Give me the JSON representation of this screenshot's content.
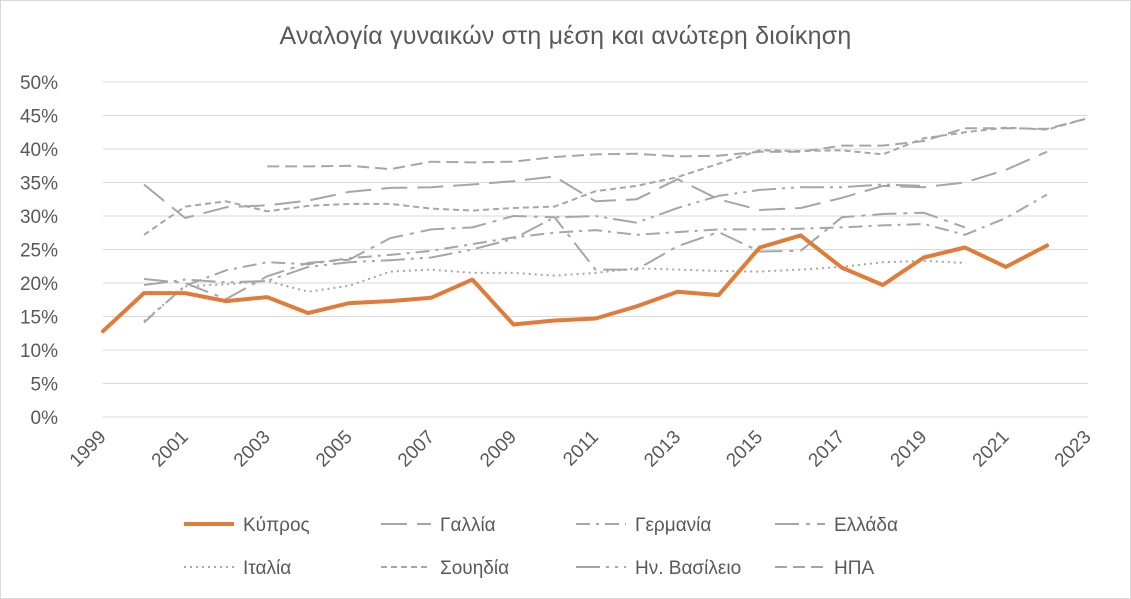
{
  "chart_data": {
    "type": "line",
    "title": "Αναλογία γυναικών στη μέση και ανώτερη διοίκηση",
    "xlabel": "",
    "ylabel": "",
    "ylim": [
      0,
      0.5
    ],
    "xlim": [
      1999,
      2023
    ],
    "y_ticks": [
      "0%",
      "5%",
      "10%",
      "15%",
      "20%",
      "25%",
      "30%",
      "35%",
      "40%",
      "45%",
      "50%"
    ],
    "x_ticks": [
      "1999",
      "2001",
      "2003",
      "2005",
      "2007",
      "2009",
      "2011",
      "2013",
      "2015",
      "2017",
      "2019",
      "2021",
      "2023"
    ],
    "grid": "horizontal",
    "legend_position": "bottom",
    "series": [
      {
        "name": "Κύπρος",
        "color": "#E07B39",
        "style": "solid-thick",
        "x": [
          1999,
          2000,
          2001,
          2002,
          2003,
          2004,
          2005,
          2006,
          2007,
          2008,
          2009,
          2010,
          2011,
          2012,
          2013,
          2014,
          2015,
          2016,
          2017,
          2018,
          2019,
          2020,
          2021,
          2022
        ],
        "values": [
          0.128,
          0.185,
          0.185,
          0.173,
          0.179,
          0.155,
          0.17,
          0.173,
          0.178,
          0.205,
          0.138,
          0.144,
          0.147,
          0.165,
          0.187,
          0.182,
          0.253,
          0.271,
          0.223,
          0.197,
          0.238,
          0.253,
          0.224,
          0.256
        ]
      },
      {
        "name": "Γαλλία",
        "color": "#A6A6A6",
        "style": "long-dash",
        "x": [
          2000,
          2001,
          2002,
          2003,
          2004,
          2005,
          2006,
          2007,
          2008,
          2009,
          2010,
          2011,
          2012,
          2013,
          2014,
          2015,
          2016,
          2017,
          2018,
          2019,
          2020,
          2021,
          2022
        ],
        "values": [
          0.347,
          0.297,
          0.313,
          0.316,
          0.323,
          0.336,
          0.342,
          0.343,
          0.347,
          0.352,
          0.359,
          0.322,
          0.325,
          0.355,
          0.325,
          0.309,
          0.312,
          0.327,
          0.345,
          0.343,
          0.35,
          0.369,
          0.396
        ]
      },
      {
        "name": "Γερμανία",
        "color": "#A6A6A6",
        "style": "dash-dot",
        "x": [
          2000,
          2001,
          2002,
          2003,
          2004,
          2005,
          2006,
          2007,
          2008,
          2009,
          2010,
          2011,
          2012,
          2013,
          2014,
          2015,
          2016,
          2017,
          2018,
          2019,
          2020,
          2021,
          2022
        ],
        "values": [
          0.141,
          0.196,
          0.219,
          0.231,
          0.228,
          0.237,
          0.242,
          0.248,
          0.258,
          0.268,
          0.275,
          0.279,
          0.272,
          0.276,
          0.28,
          0.28,
          0.281,
          0.283,
          0.286,
          0.288,
          0.272,
          0.297,
          0.332
        ]
      },
      {
        "name": "Ελλάδα",
        "color": "#A6A6A6",
        "style": "long-dash-dot",
        "x": [
          2000,
          2001,
          2002,
          2003,
          2004,
          2005,
          2006,
          2007,
          2008,
          2009,
          2010,
          2011,
          2012,
          2013,
          2014,
          2015,
          2016,
          2017,
          2018,
          2019,
          2020
        ],
        "values": [
          0.206,
          0.2,
          0.176,
          0.21,
          0.23,
          0.235,
          0.267,
          0.28,
          0.283,
          0.3,
          0.298,
          0.22,
          0.22,
          0.255,
          0.276,
          0.247,
          0.248,
          0.298,
          0.303,
          0.305,
          0.283
        ]
      },
      {
        "name": "Ιταλία",
        "color": "#A6A6A6",
        "style": "dotted",
        "x": [
          2000,
          2001,
          2002,
          2003,
          2004,
          2005,
          2006,
          2007,
          2008,
          2009,
          2010,
          2011,
          2012,
          2013,
          2014,
          2015,
          2016,
          2017,
          2018,
          2019,
          2020
        ],
        "values": [
          0.143,
          0.195,
          0.198,
          0.203,
          0.187,
          0.196,
          0.217,
          0.22,
          0.215,
          0.215,
          0.211,
          0.215,
          0.222,
          0.22,
          0.218,
          0.217,
          0.22,
          0.224,
          0.231,
          0.233,
          0.23
        ]
      },
      {
        "name": "Σουηδία",
        "color": "#A6A6A6",
        "style": "short-dash",
        "x": [
          2000,
          2001,
          2002,
          2003,
          2004,
          2005,
          2006,
          2007,
          2008,
          2009,
          2010,
          2011,
          2012,
          2013,
          2014,
          2015,
          2016,
          2017,
          2018,
          2019,
          2020,
          2021,
          2022,
          2023
        ],
        "values": [
          0.272,
          0.314,
          0.322,
          0.307,
          0.315,
          0.318,
          0.318,
          0.311,
          0.308,
          0.312,
          0.314,
          0.337,
          0.345,
          0.358,
          0.378,
          0.398,
          0.397,
          0.398,
          0.392,
          0.416,
          0.425,
          0.432,
          0.429,
          0.446
        ]
      },
      {
        "name": "Ην. Βασίλειο",
        "color": "#A6A6A6",
        "style": "long-dash-dot-dot",
        "x": [
          2000,
          2001,
          2002,
          2003,
          2004,
          2005,
          2006,
          2007,
          2008,
          2009,
          2010,
          2011,
          2012,
          2013,
          2014,
          2015,
          2016,
          2017,
          2018,
          2019
        ],
        "values": [
          0.197,
          0.205,
          0.201,
          0.203,
          0.224,
          0.231,
          0.234,
          0.238,
          0.25,
          0.266,
          0.298,
          0.3,
          0.29,
          0.312,
          0.33,
          0.339,
          0.343,
          0.343,
          0.347,
          0.345
        ]
      },
      {
        "name": "ΗΠΑ",
        "color": "#A6A6A6",
        "style": "medium-dash",
        "x": [
          2003,
          2004,
          2005,
          2006,
          2007,
          2008,
          2009,
          2010,
          2011,
          2012,
          2013,
          2014,
          2015,
          2016,
          2017,
          2018,
          2019,
          2020,
          2021,
          2022,
          2023
        ],
        "values": [
          0.374,
          0.374,
          0.375,
          0.37,
          0.381,
          0.38,
          0.381,
          0.388,
          0.392,
          0.393,
          0.389,
          0.39,
          0.396,
          0.396,
          0.405,
          0.405,
          0.412,
          0.431,
          0.431,
          0.43,
          0.446
        ]
      }
    ]
  }
}
